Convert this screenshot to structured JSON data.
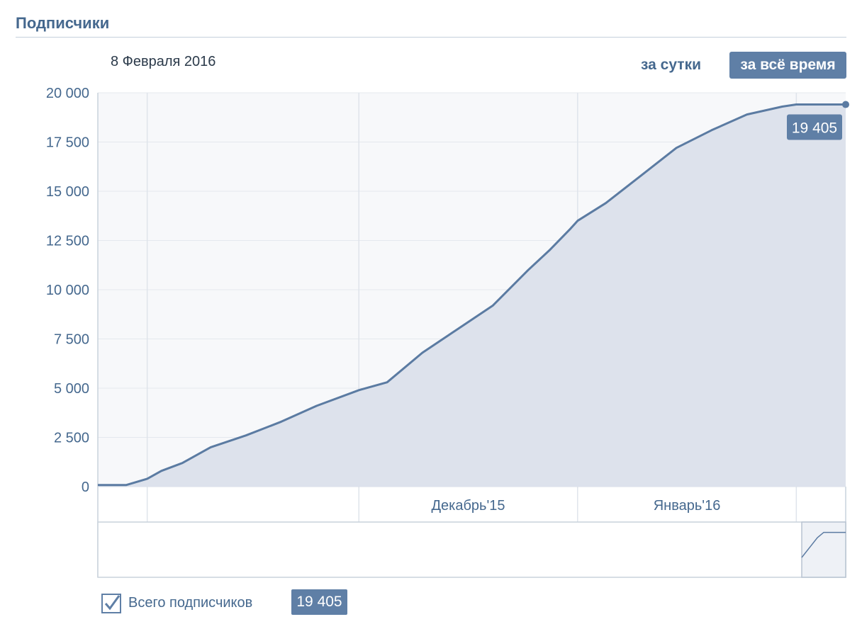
{
  "header": {
    "title": "Подписчики",
    "date": "8 Февраля 2016",
    "range_day_label": "за сутки",
    "range_all_label": "за всё время"
  },
  "legend": {
    "label": "Всего подписчиков",
    "value": "19 405",
    "checked": true
  },
  "colors": {
    "accent": "#5f7fa6",
    "line": "#5b7ba2",
    "area": "#dde2ec",
    "plot_background": "#f7f8fa",
    "grid": "#e4e8ee",
    "text": "#45688e"
  },
  "chart_data": {
    "type": "area",
    "title": "",
    "xlabel": "",
    "ylabel": "",
    "ylim": [
      0,
      20000
    ],
    "yticks": [
      "0",
      "2 500",
      "5 000",
      "7 500",
      "10 000",
      "12 500",
      "15 000",
      "17 500",
      "20 000"
    ],
    "ytick_values": [
      0,
      2500,
      5000,
      7500,
      10000,
      12500,
      15000,
      17500,
      20000
    ],
    "xlim": [
      "2015-10-25",
      "2016-02-08"
    ],
    "x_month_labels": [
      {
        "date": "2015-12-01",
        "label": "Декабрь'15"
      },
      {
        "date": "2016-01-01",
        "label": "Январь'16"
      }
    ],
    "gridlines_x": [
      "2015-11-01",
      "2015-12-01",
      "2016-01-01",
      "2016-02-01"
    ],
    "grid": true,
    "series": [
      {
        "name": "Всего подписчиков",
        "x": [
          "2015-10-25",
          "2015-10-28",
          "2015-10-29",
          "2015-11-01",
          "2015-11-03",
          "2015-11-06",
          "2015-11-10",
          "2015-11-15",
          "2015-11-20",
          "2015-11-25",
          "2015-12-01",
          "2015-12-05",
          "2015-12-10",
          "2015-12-15",
          "2015-12-20",
          "2015-12-25",
          "2015-12-28",
          "2015-12-31",
          "2016-01-01",
          "2016-01-05",
          "2016-01-10",
          "2016-01-15",
          "2016-01-20",
          "2016-01-25",
          "2016-01-30",
          "2016-02-01",
          "2016-02-05",
          "2016-02-07",
          "2016-02-08"
        ],
        "values": [
          80,
          80,
          80,
          400,
          800,
          1200,
          2000,
          2600,
          3300,
          4100,
          4900,
          5300,
          6800,
          8000,
          9200,
          11000,
          12000,
          13100,
          13500,
          14400,
          15800,
          17200,
          18100,
          18900,
          19300,
          19405,
          19405,
          19405,
          19405
        ]
      }
    ],
    "last_value_label": "19 405"
  },
  "navigator": {
    "brush_note": ""
  }
}
